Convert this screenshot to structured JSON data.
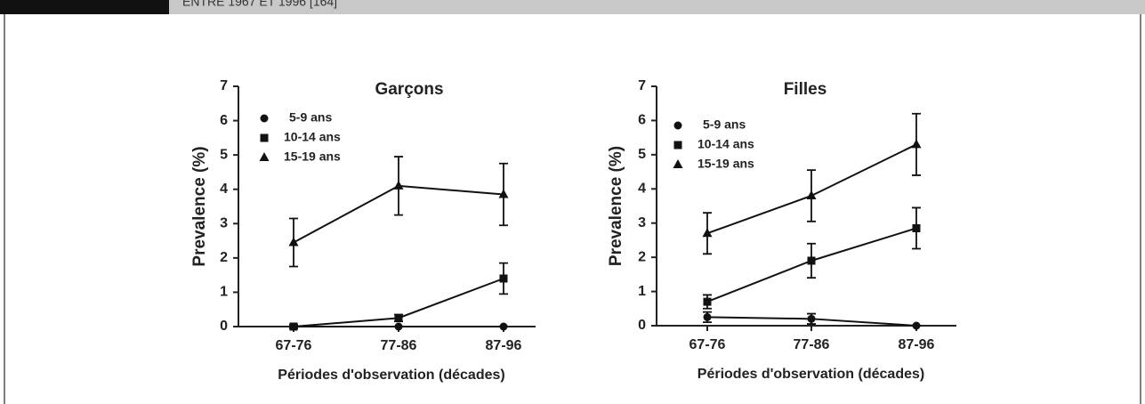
{
  "header": {
    "text": "ENTRE 1967 ET 1996 [164]"
  },
  "chart_data": [
    {
      "type": "line",
      "title": "Garçons",
      "y_label": "Prevalence (%)",
      "x_label": "Périodes d'observation (décades)",
      "categories": [
        "67-76",
        "77-86",
        "87-96"
      ],
      "ylim": [
        0,
        7
      ],
      "yticks": [
        0,
        1,
        2,
        3,
        4,
        5,
        6,
        7
      ],
      "series": [
        {
          "name": "5-9 ans",
          "color": "#111111",
          "marker": "circle",
          "values": [
            0,
            0,
            0
          ]
        },
        {
          "name": "10-14 ans",
          "color": "#111111",
          "marker": "square",
          "values": [
            0,
            0.25,
            1.4
          ],
          "errors": [
            0.05,
            0.1,
            0.45
          ]
        },
        {
          "name": "15-19 ans",
          "color": "#111111",
          "marker": "triangle",
          "values": [
            2.45,
            4.1,
            3.85
          ],
          "errors": [
            0.7,
            0.85,
            0.9
          ]
        }
      ]
    },
    {
      "type": "line",
      "title": "Filles",
      "y_label": "Prevalence (%)",
      "x_label": "Périodes d'observation (décades)",
      "categories": [
        "67-76",
        "77-86",
        "87-96"
      ],
      "ylim": [
        0,
        7
      ],
      "yticks": [
        0,
        1,
        2,
        3,
        4,
        5,
        6,
        7
      ],
      "series": [
        {
          "name": "5-9 ans",
          "color": "#111111",
          "marker": "circle",
          "values": [
            0.25,
            0.2,
            0
          ],
          "errors": [
            0.15,
            0.15,
            0
          ]
        },
        {
          "name": "10-14 ans",
          "color": "#111111",
          "marker": "square",
          "values": [
            0.7,
            1.9,
            2.85
          ],
          "errors": [
            0.2,
            0.5,
            0.6
          ]
        },
        {
          "name": "15-19 ans",
          "color": "#111111",
          "marker": "triangle",
          "values": [
            2.7,
            3.8,
            5.3
          ],
          "errors": [
            0.6,
            0.75,
            0.9
          ]
        }
      ]
    }
  ]
}
